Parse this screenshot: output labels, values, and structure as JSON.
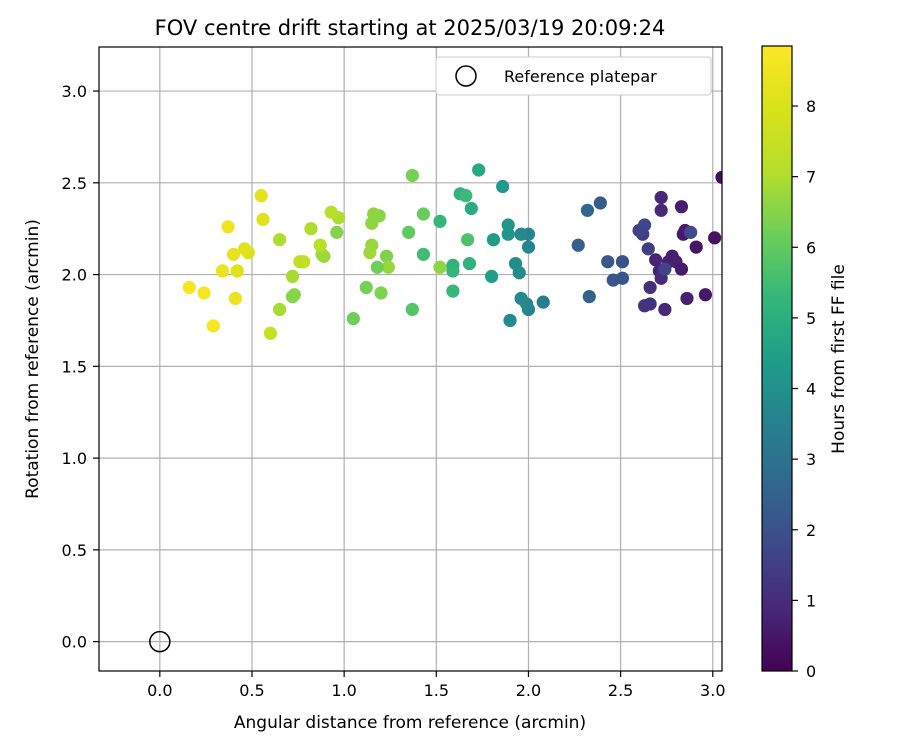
{
  "chart_data": {
    "type": "scatter",
    "title": "FOV centre drift starting at 2025/03/19 20:09:24",
    "xlabel": "Angular distance from reference (arcmin)",
    "ylabel": "Rotation from reference (arcmin)",
    "xlim": [
      -0.33,
      3.05
    ],
    "ylim": [
      -0.16,
      3.24
    ],
    "xticks": [
      "0.0",
      "0.5",
      "1.0",
      "1.5",
      "2.0",
      "2.5",
      "3.0"
    ],
    "yticks": [
      "0.0",
      "0.5",
      "1.0",
      "1.5",
      "2.0",
      "2.5",
      "3.0"
    ],
    "grid": true,
    "legend": {
      "position": "top-right",
      "label": "Reference platepar"
    },
    "colorbar": {
      "label": "Hours from first FF file",
      "range": [
        0,
        8.85
      ],
      "ticks": [
        "0",
        "1",
        "2",
        "3",
        "4",
        "5",
        "6",
        "7",
        "8"
      ],
      "colormap": "viridis"
    },
    "reference_point": {
      "x": 0.0,
      "y": 0.0
    },
    "series": [
      {
        "points": [
          {
            "x": 2.72,
            "y": 2.42,
            "c": 0.9
          },
          {
            "x": 2.72,
            "y": 2.35,
            "c": 0.9
          },
          {
            "x": 2.83,
            "y": 2.37,
            "c": 0.7
          },
          {
            "x": 3.01,
            "y": 2.2,
            "c": 0.4
          },
          {
            "x": 3.05,
            "y": 2.53,
            "c": 0.3
          },
          {
            "x": 2.91,
            "y": 2.15,
            "c": 0.5
          },
          {
            "x": 2.84,
            "y": 2.22,
            "c": 0.6
          },
          {
            "x": 2.85,
            "y": 2.24,
            "c": 0.6
          },
          {
            "x": 2.69,
            "y": 2.08,
            "c": 0.8
          },
          {
            "x": 2.71,
            "y": 2.02,
            "c": 0.8
          },
          {
            "x": 2.76,
            "y": 2.07,
            "c": 0.7
          },
          {
            "x": 2.78,
            "y": 2.1,
            "c": 0.7
          },
          {
            "x": 2.8,
            "y": 2.07,
            "c": 0.7
          },
          {
            "x": 2.83,
            "y": 2.03,
            "c": 0.6
          },
          {
            "x": 2.72,
            "y": 1.98,
            "c": 1.0
          },
          {
            "x": 2.66,
            "y": 1.93,
            "c": 1.1
          },
          {
            "x": 2.74,
            "y": 1.81,
            "c": 0.9
          },
          {
            "x": 2.86,
            "y": 1.87,
            "c": 0.7
          },
          {
            "x": 2.96,
            "y": 1.89,
            "c": 0.5
          },
          {
            "x": 2.63,
            "y": 1.83,
            "c": 1.2
          },
          {
            "x": 2.66,
            "y": 1.84,
            "c": 1.2
          },
          {
            "x": 2.62,
            "y": 2.22,
            "c": 1.4
          },
          {
            "x": 2.65,
            "y": 2.14,
            "c": 1.5
          },
          {
            "x": 2.6,
            "y": 2.24,
            "c": 1.6
          },
          {
            "x": 2.63,
            "y": 2.27,
            "c": 1.7
          },
          {
            "x": 2.74,
            "y": 2.03,
            "c": 1.6
          },
          {
            "x": 2.88,
            "y": 2.23,
            "c": 1.8
          },
          {
            "x": 2.51,
            "y": 2.07,
            "c": 2.0
          },
          {
            "x": 2.51,
            "y": 1.98,
            "c": 2.1
          },
          {
            "x": 2.46,
            "y": 1.97,
            "c": 2.1
          },
          {
            "x": 2.43,
            "y": 2.07,
            "c": 2.2
          },
          {
            "x": 2.39,
            "y": 2.39,
            "c": 2.3
          },
          {
            "x": 2.32,
            "y": 2.35,
            "c": 2.6
          },
          {
            "x": 2.27,
            "y": 2.16,
            "c": 2.4
          },
          {
            "x": 2.33,
            "y": 1.88,
            "c": 2.5
          },
          {
            "x": 2.08,
            "y": 1.85,
            "c": 3.4
          },
          {
            "x": 2.0,
            "y": 1.81,
            "c": 3.6
          },
          {
            "x": 1.99,
            "y": 1.84,
            "c": 3.7
          },
          {
            "x": 1.96,
            "y": 1.87,
            "c": 3.8
          },
          {
            "x": 1.9,
            "y": 1.75,
            "c": 3.8
          },
          {
            "x": 1.95,
            "y": 2.01,
            "c": 3.9
          },
          {
            "x": 1.93,
            "y": 2.06,
            "c": 3.9
          },
          {
            "x": 2.0,
            "y": 2.15,
            "c": 3.7
          },
          {
            "x": 2.0,
            "y": 2.22,
            "c": 3.6
          },
          {
            "x": 1.96,
            "y": 2.22,
            "c": 3.8
          },
          {
            "x": 1.89,
            "y": 2.22,
            "c": 4.1
          },
          {
            "x": 1.89,
            "y": 2.27,
            "c": 4.2
          },
          {
            "x": 1.86,
            "y": 2.48,
            "c": 4.3
          },
          {
            "x": 1.81,
            "y": 2.19,
            "c": 4.4
          },
          {
            "x": 1.8,
            "y": 1.99,
            "c": 4.5
          },
          {
            "x": 1.73,
            "y": 2.57,
            "c": 4.8
          },
          {
            "x": 1.69,
            "y": 2.36,
            "c": 4.9
          },
          {
            "x": 1.68,
            "y": 2.06,
            "c": 5.1
          },
          {
            "x": 1.63,
            "y": 2.44,
            "c": 5.1
          },
          {
            "x": 1.66,
            "y": 2.43,
            "c": 5.4
          },
          {
            "x": 1.59,
            "y": 2.05,
            "c": 5.1
          },
          {
            "x": 1.59,
            "y": 2.02,
            "c": 5.2
          },
          {
            "x": 1.59,
            "y": 1.91,
            "c": 5.3
          },
          {
            "x": 1.52,
            "y": 2.29,
            "c": 5.3
          },
          {
            "x": 1.67,
            "y": 2.19,
            "c": 5.7
          },
          {
            "x": 1.52,
            "y": 2.04,
            "c": 6.6
          },
          {
            "x": 1.43,
            "y": 2.11,
            "c": 5.5
          },
          {
            "x": 1.43,
            "y": 2.33,
            "c": 6.1
          },
          {
            "x": 1.37,
            "y": 2.54,
            "c": 6.3
          },
          {
            "x": 1.37,
            "y": 1.81,
            "c": 5.8
          },
          {
            "x": 1.35,
            "y": 2.23,
            "c": 6.0
          },
          {
            "x": 1.23,
            "y": 2.1,
            "c": 6.4
          },
          {
            "x": 1.24,
            "y": 2.04,
            "c": 6.7
          },
          {
            "x": 1.2,
            "y": 1.9,
            "c": 6.4
          },
          {
            "x": 1.18,
            "y": 2.04,
            "c": 6.2
          },
          {
            "x": 1.19,
            "y": 2.32,
            "c": 6.5
          },
          {
            "x": 1.16,
            "y": 2.33,
            "c": 6.6
          },
          {
            "x": 1.15,
            "y": 2.28,
            "c": 6.6
          },
          {
            "x": 1.15,
            "y": 2.16,
            "c": 6.7
          },
          {
            "x": 1.14,
            "y": 2.12,
            "c": 6.8
          },
          {
            "x": 1.12,
            "y": 1.93,
            "c": 6.3
          },
          {
            "x": 1.05,
            "y": 1.76,
            "c": 6.2
          },
          {
            "x": 0.97,
            "y": 2.31,
            "c": 7.0
          },
          {
            "x": 0.96,
            "y": 2.23,
            "c": 6.5
          },
          {
            "x": 0.93,
            "y": 2.34,
            "c": 7.2
          },
          {
            "x": 0.89,
            "y": 2.1,
            "c": 6.7
          },
          {
            "x": 0.88,
            "y": 2.11,
            "c": 6.8
          },
          {
            "x": 0.87,
            "y": 2.16,
            "c": 7.2
          },
          {
            "x": 0.82,
            "y": 2.25,
            "c": 7.0
          },
          {
            "x": 0.78,
            "y": 2.07,
            "c": 7.4
          },
          {
            "x": 0.76,
            "y": 2.07,
            "c": 7.4
          },
          {
            "x": 0.72,
            "y": 1.99,
            "c": 6.9
          },
          {
            "x": 0.73,
            "y": 1.89,
            "c": 6.6
          },
          {
            "x": 0.72,
            "y": 1.88,
            "c": 6.5
          },
          {
            "x": 0.65,
            "y": 1.81,
            "c": 6.9
          },
          {
            "x": 0.65,
            "y": 2.19,
            "c": 7.0
          },
          {
            "x": 0.6,
            "y": 1.68,
            "c": 7.5
          },
          {
            "x": 0.55,
            "y": 2.43,
            "c": 8.2
          },
          {
            "x": 0.56,
            "y": 2.3,
            "c": 8.1
          },
          {
            "x": 0.48,
            "y": 2.12,
            "c": 8.0
          },
          {
            "x": 0.46,
            "y": 2.14,
            "c": 8.2
          },
          {
            "x": 0.42,
            "y": 2.02,
            "c": 8.1
          },
          {
            "x": 0.41,
            "y": 1.87,
            "c": 8.4
          },
          {
            "x": 0.4,
            "y": 2.11,
            "c": 8.3
          },
          {
            "x": 0.37,
            "y": 2.26,
            "c": 8.5
          },
          {
            "x": 0.34,
            "y": 2.02,
            "c": 8.4
          },
          {
            "x": 0.29,
            "y": 1.72,
            "c": 8.7
          },
          {
            "x": 0.24,
            "y": 1.9,
            "c": 8.7
          },
          {
            "x": 0.16,
            "y": 1.93,
            "c": 8.7
          }
        ]
      }
    ]
  }
}
